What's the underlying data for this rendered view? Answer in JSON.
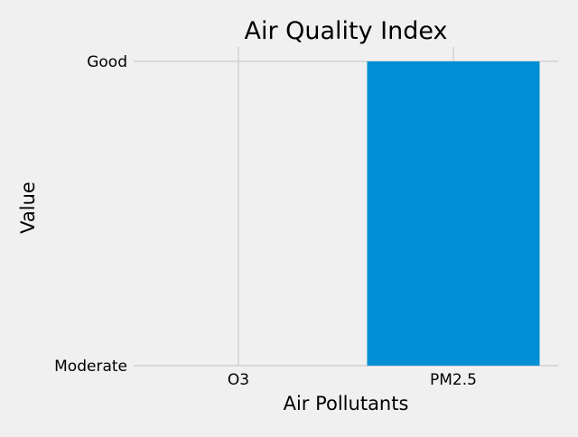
{
  "chart_data": {
    "type": "bar",
    "title": "Air Quality Index",
    "xlabel": "Air Pollutants",
    "ylabel": "Value",
    "categories": [
      "O3",
      "PM2.5"
    ],
    "y_categories": [
      "Moderate",
      "Good"
    ],
    "values": [
      "Moderate",
      "Good"
    ],
    "grid": true,
    "legend": "none",
    "colors": {
      "background": "#f0f0f0",
      "grid": "#cbcbcb",
      "bar": "#008fd5",
      "text": "#000000"
    }
  }
}
